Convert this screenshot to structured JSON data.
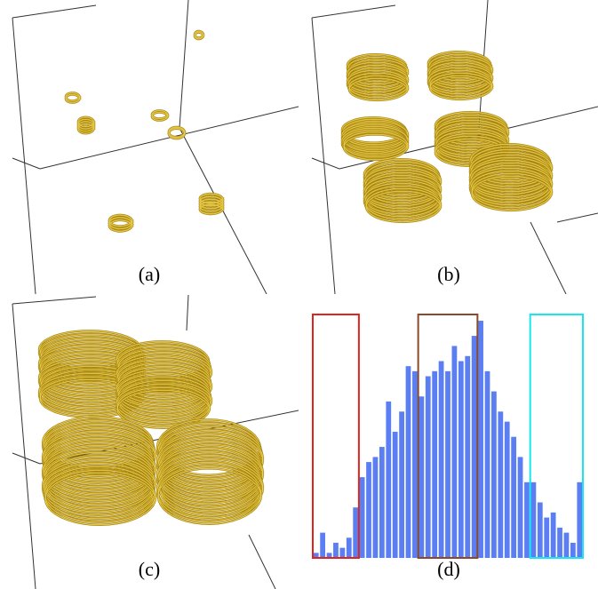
{
  "figure": {
    "panels": [
      {
        "id": "a",
        "caption": "(a)",
        "content": "sparse-helical-streamlines"
      },
      {
        "id": "b",
        "caption": "(b)",
        "content": "two-dense-helical-columns"
      },
      {
        "id": "c",
        "caption": "(c)",
        "content": "full-helical-streamline-field"
      },
      {
        "id": "d",
        "caption": "(d)",
        "content": "histogram"
      }
    ],
    "colors": {
      "streamline": "#d4b22c",
      "streamline_dark": "#9c7c10",
      "streamline_light": "#f3df72",
      "bounding_box": "#333333"
    }
  },
  "chart_data": {
    "type": "bar",
    "values": [
      1,
      5,
      1,
      3,
      2,
      4,
      10,
      16,
      19,
      20,
      22,
      31,
      25,
      29,
      38,
      37,
      32,
      36,
      37,
      39,
      37,
      42,
      39,
      40,
      44,
      47,
      37,
      33,
      29,
      27,
      24,
      20,
      15,
      15,
      11,
      8,
      9,
      6,
      5,
      3,
      15
    ],
    "ylim": [
      0,
      50
    ],
    "bar_color": "#5b7ff2",
    "highlights": [
      {
        "start": 0,
        "end": 6,
        "color": "#e0231b"
      },
      {
        "start": 16,
        "end": 24,
        "color": "#8a4a2a"
      },
      {
        "start": 33,
        "end": 40,
        "color": "#17e6ef"
      }
    ]
  }
}
